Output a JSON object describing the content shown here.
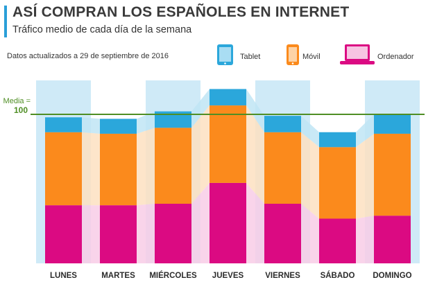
{
  "header": {
    "title": "ASÍ COMPRAN LOS ESPAÑOLES EN INTERNET",
    "subtitle": "Tráfico medio de cada día de la semana",
    "updated": "Datos actualizados a 29 de septiembre de 2016"
  },
  "legend": [
    {
      "label": "Tablet",
      "icon": "tablet-icon"
    },
    {
      "label": "Móvil",
      "icon": "phone-icon"
    },
    {
      "label": "Ordenador",
      "icon": "laptop-icon"
    }
  ],
  "colors": {
    "tablet": "#2ba7db",
    "movil": "#fb8a1c",
    "ordenador": "#db0a82",
    "media_line": "#4f8e24",
    "band_tablet": "#bfe5f5",
    "band_movil": "#fde1c1",
    "band_ordenador": "#f8cde6",
    "column_bg": "#cfeaf7"
  },
  "chart_data": {
    "type": "bar",
    "stacked": true,
    "categories": [
      "LUNES",
      "MARTES",
      "MIÉRCOLES",
      "JUEVES",
      "VIERNES",
      "SÁBADO",
      "DOMINGO"
    ],
    "series": [
      {
        "name": "Ordenador",
        "values": [
          39,
          39,
          40,
          54,
          40,
          30,
          32
        ]
      },
      {
        "name": "Móvil",
        "values": [
          49,
          48,
          51,
          52,
          48,
          48,
          55
        ]
      },
      {
        "name": "Tablet",
        "values": [
          10,
          10,
          11,
          11,
          11,
          10,
          13
        ]
      }
    ],
    "reference_line": {
      "label_top": "Media =",
      "label_value": "100",
      "value": 100
    },
    "ylim": [
      0,
      117
    ],
    "grid": false,
    "legend_position": "top"
  }
}
